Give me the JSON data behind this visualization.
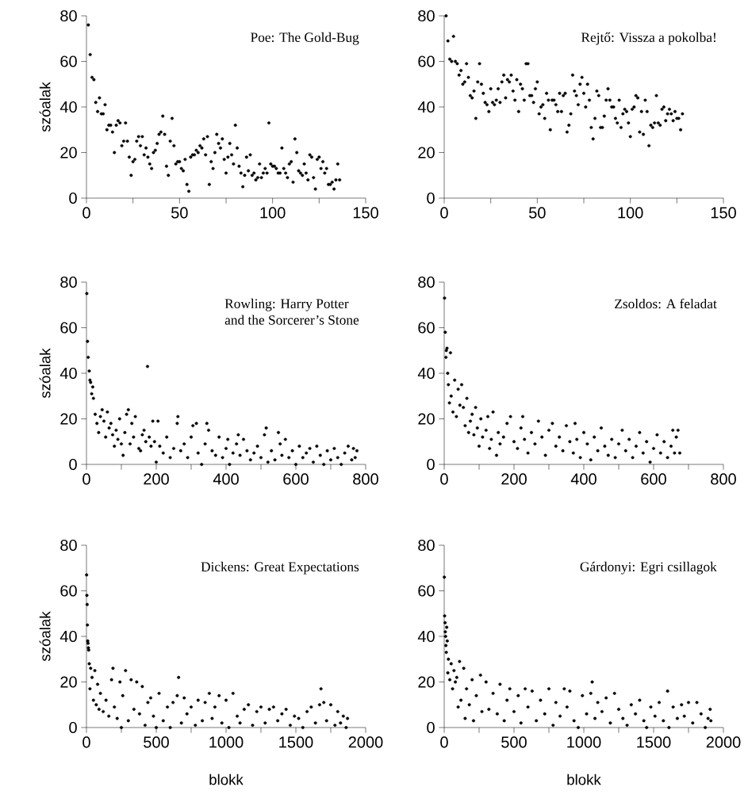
{
  "chart_data": [
    {
      "type": "scatter",
      "title": "Poe: The Gold-Bug",
      "ylabel": "szóalak",
      "color": "#000000",
      "marker": "circle",
      "x": [
        1,
        2,
        3,
        4,
        5,
        6,
        7,
        8,
        9,
        10,
        11,
        12,
        13,
        14,
        15,
        16,
        17,
        18,
        19,
        20,
        21,
        22,
        23,
        24,
        25,
        26,
        27,
        28,
        29,
        30,
        31,
        32,
        33,
        34,
        35,
        36,
        37,
        38,
        39,
        40,
        41,
        42,
        43,
        44,
        45,
        46,
        47,
        48,
        49,
        50,
        51,
        52,
        53,
        54,
        55,
        56,
        57,
        58,
        59,
        60,
        61,
        62,
        63,
        64,
        65,
        66,
        67,
        68,
        69,
        70,
        71,
        72,
        73,
        74,
        75,
        76,
        77,
        78,
        79,
        80,
        81,
        82,
        83,
        84,
        85,
        86,
        87,
        88,
        89,
        90,
        91,
        92,
        93,
        94,
        95,
        96,
        97,
        98,
        99,
        100,
        101,
        102,
        103,
        104,
        105,
        106,
        107,
        108,
        109,
        110,
        111,
        112,
        113,
        114,
        115,
        116,
        117,
        118,
        119,
        120,
        121,
        122,
        123,
        124,
        125,
        126,
        127,
        128,
        129,
        130,
        131,
        132,
        133,
        134,
        135,
        136
      ],
      "values": [
        76,
        63,
        53,
        52,
        42,
        38,
        44,
        37,
        37,
        41,
        30,
        32,
        32,
        29,
        20,
        32,
        34,
        33,
        23,
        25,
        33,
        25,
        18,
        10,
        16,
        17,
        25,
        27,
        23,
        27,
        19,
        22,
        18,
        15,
        13,
        20,
        21,
        24,
        28,
        29,
        36,
        28,
        14,
        10,
        25,
        35,
        23,
        15,
        16,
        16,
        13,
        12,
        17,
        6,
        3,
        18,
        19,
        19,
        21,
        20,
        23,
        22,
        26,
        19,
        27,
        6,
        16,
        13,
        20,
        28,
        24,
        22,
        26,
        17,
        11,
        18,
        24,
        19,
        15,
        32,
        22,
        14,
        11,
        5,
        10,
        18,
        12,
        19,
        10,
        11,
        8,
        9,
        15,
        9,
        11,
        13,
        11,
        33,
        15,
        14,
        14,
        13,
        11,
        11,
        22,
        13,
        11,
        9,
        15,
        16,
        7,
        26,
        20,
        12,
        11,
        10,
        15,
        11,
        8,
        19,
        18,
        9,
        4,
        17,
        18,
        13,
        16,
        11,
        13,
        6,
        6,
        7,
        4,
        8,
        15,
        8
      ],
      "xlim": [
        0,
        150
      ],
      "ylim": [
        0,
        80
      ],
      "xticks": [
        0,
        {
          "value": 25,
          "label": null
        },
        50,
        {
          "value": 75,
          "label": null
        },
        100,
        {
          "value": 125,
          "label": null
        },
        150
      ],
      "yticks": [
        0,
        20,
        40,
        60,
        80
      ]
    },
    {
      "type": "scatter",
      "title": "Rejtő: Vissza a pokolba!",
      "color": "#000000",
      "marker": "circle",
      "x": [
        1,
        2,
        3,
        4,
        5,
        6,
        7,
        8,
        9,
        10,
        11,
        12,
        13,
        14,
        15,
        16,
        17,
        18,
        19,
        20,
        21,
        22,
        23,
        24,
        25,
        26,
        27,
        28,
        29,
        30,
        31,
        32,
        33,
        34,
        35,
        36,
        37,
        38,
        39,
        40,
        41,
        42,
        43,
        44,
        45,
        46,
        47,
        48,
        49,
        50,
        51,
        52,
        53,
        54,
        55,
        56,
        57,
        58,
        59,
        60,
        61,
        62,
        63,
        64,
        65,
        66,
        67,
        68,
        69,
        70,
        71,
        72,
        73,
        74,
        75,
        76,
        77,
        78,
        79,
        80,
        81,
        82,
        83,
        84,
        85,
        86,
        87,
        88,
        89,
        90,
        91,
        92,
        93,
        94,
        95,
        96,
        97,
        98,
        99,
        100,
        101,
        102,
        103,
        104,
        105,
        106,
        107,
        108,
        109,
        110,
        111,
        112,
        113,
        114,
        115,
        116,
        117,
        118,
        119,
        120,
        121,
        122,
        123,
        124,
        125,
        126,
        127,
        128
      ],
      "values": [
        80,
        69,
        61,
        60,
        71,
        60,
        59,
        54,
        56,
        50,
        51,
        59,
        53,
        45,
        44,
        47,
        35,
        51,
        59,
        50,
        46,
        42,
        41,
        38,
        48,
        42,
        41,
        43,
        48,
        42,
        51,
        54,
        44,
        52,
        51,
        54,
        47,
        43,
        52,
        38,
        50,
        48,
        43,
        59,
        59,
        45,
        45,
        42,
        48,
        51,
        37,
        40,
        41,
        35,
        46,
        43,
        30,
        43,
        43,
        41,
        38,
        46,
        38,
        45,
        46,
        29,
        32,
        37,
        54,
        47,
        45,
        41,
        50,
        53,
        46,
        40,
        50,
        43,
        31,
        26,
        35,
        47,
        45,
        31,
        31,
        36,
        43,
        48,
        43,
        40,
        40,
        35,
        33,
        43,
        31,
        37,
        39,
        38,
        33,
        27,
        39,
        40,
        45,
        44,
        29,
        38,
        28,
        43,
        38,
        23,
        32,
        31,
        33,
        45,
        33,
        32,
        39,
        40,
        34,
        37,
        39,
        37,
        34,
        38,
        35,
        35,
        30,
        37
      ],
      "xlim": [
        0,
        150
      ],
      "ylim": [
        0,
        80
      ],
      "xticks": [
        0,
        {
          "value": 25,
          "label": null
        },
        50,
        {
          "value": 75,
          "label": null
        },
        100,
        {
          "value": 125,
          "label": null
        },
        150
      ],
      "yticks": [
        0,
        20,
        40,
        60,
        80
      ]
    },
    {
      "type": "scatter",
      "title": "Rowling: Harry Potter",
      "subtitle": "and the Sorcerer’s Stone",
      "ylabel": "szóalak",
      "color": "#000000",
      "marker": "circle",
      "x": [
        1,
        3,
        5,
        8,
        10,
        12,
        15,
        18,
        20,
        25,
        30,
        35,
        40,
        45,
        50,
        55,
        60,
        65,
        70,
        75,
        80,
        85,
        90,
        95,
        100,
        105,
        110,
        115,
        120,
        125,
        130,
        135,
        140,
        150,
        155,
        160,
        165,
        170,
        175,
        180,
        185,
        190,
        195,
        200,
        205,
        210,
        220,
        230,
        240,
        250,
        260,
        262,
        270,
        280,
        290,
        300,
        305,
        315,
        320,
        330,
        340,
        345,
        350,
        360,
        370,
        380,
        390,
        400,
        405,
        410,
        420,
        430,
        435,
        440,
        450,
        460,
        470,
        480,
        490,
        500,
        510,
        515,
        520,
        530,
        540,
        550,
        555,
        560,
        570,
        580,
        590,
        600,
        610,
        620,
        630,
        640,
        650,
        660,
        670,
        680,
        690,
        700,
        710,
        720,
        730,
        740,
        750,
        760,
        765,
        770,
        775
      ],
      "values": [
        75,
        54,
        47,
        41,
        37,
        36,
        31,
        34,
        29,
        22,
        18,
        14,
        21,
        24,
        19,
        12,
        23,
        16,
        18,
        13,
        8,
        15,
        11,
        20,
        9,
        4,
        14,
        22,
        24,
        9,
        18,
        12,
        21,
        7,
        6,
        13,
        15,
        10,
        43,
        12,
        8,
        19,
        10,
        1,
        19,
        8,
        5,
        12,
        3,
        7,
        18,
        21,
        6,
        9,
        3,
        12,
        17,
        18,
        5,
        0,
        9,
        18,
        15,
        6,
        4,
        12,
        3,
        7,
        11,
        0,
        5,
        9,
        13,
        4,
        11,
        6,
        2,
        5,
        8,
        3,
        13,
        16,
        1,
        6,
        2,
        14,
        9,
        4,
        11,
        3,
        6,
        0,
        8,
        3,
        5,
        7,
        1,
        8,
        4,
        0,
        6,
        2,
        7,
        3,
        0,
        5,
        8,
        2,
        7,
        3,
        6
      ],
      "xlim": [
        0,
        800
      ],
      "ylim": [
        0,
        80
      ],
      "xticks": [
        0,
        {
          "value": 100,
          "label": null
        },
        200,
        {
          "value": 300,
          "label": null
        },
        400,
        {
          "value": 500,
          "label": null
        },
        600,
        {
          "value": 700,
          "label": null
        },
        800
      ],
      "yticks": [
        0,
        20,
        40,
        60,
        80
      ]
    },
    {
      "type": "scatter",
      "title": "Zsoldos: A feladat",
      "color": "#000000",
      "marker": "circle",
      "x": [
        1,
        3,
        5,
        6,
        8,
        10,
        12,
        15,
        18,
        20,
        25,
        30,
        35,
        40,
        45,
        50,
        55,
        60,
        65,
        70,
        75,
        80,
        85,
        90,
        95,
        100,
        105,
        110,
        120,
        125,
        130,
        135,
        140,
        150,
        155,
        160,
        170,
        180,
        190,
        200,
        210,
        220,
        225,
        230,
        240,
        250,
        260,
        270,
        280,
        290,
        300,
        310,
        320,
        330,
        340,
        350,
        360,
        370,
        375,
        380,
        390,
        400,
        410,
        420,
        430,
        440,
        450,
        460,
        470,
        480,
        490,
        500,
        510,
        520,
        530,
        540,
        550,
        560,
        570,
        580,
        590,
        600,
        610,
        620,
        630,
        640,
        650,
        655,
        660,
        665,
        670,
        675
      ],
      "values": [
        73,
        58,
        47,
        50,
        51,
        40,
        35,
        27,
        49,
        30,
        23,
        37,
        21,
        33,
        26,
        35,
        25,
        17,
        29,
        14,
        19,
        22,
        13,
        25,
        16,
        8,
        20,
        12,
        15,
        21,
        7,
        11,
        23,
        4,
        14,
        9,
        12,
        18,
        21,
        10,
        7,
        16,
        21,
        11,
        5,
        14,
        9,
        19,
        12,
        4,
        15,
        18,
        8,
        12,
        6,
        17,
        10,
        5,
        18,
        11,
        3,
        14,
        9,
        2,
        12,
        6,
        16,
        8,
        4,
        11,
        3,
        9,
        15,
        6,
        11,
        3,
        8,
        14,
        5,
        10,
        1,
        7,
        13,
        5,
        10,
        3,
        8,
        15,
        5,
        12,
        15,
        5
      ],
      "xlim": [
        0,
        800
      ],
      "ylim": [
        0,
        80
      ],
      "xticks": [
        0,
        {
          "value": 100,
          "label": null
        },
        200,
        {
          "value": 300,
          "label": null
        },
        400,
        {
          "value": 500,
          "label": null
        },
        600,
        {
          "value": 700,
          "label": null
        },
        800
      ],
      "yticks": [
        0,
        20,
        40,
        60,
        80
      ]
    },
    {
      "type": "scatter",
      "title": "Dickens: Great Expectations",
      "ylabel": "szóalak",
      "xlabel": "blokk",
      "color": "#000000",
      "marker": "circle",
      "x": [
        1,
        3,
        5,
        7,
        9,
        11,
        14,
        16,
        20,
        25,
        30,
        40,
        50,
        60,
        70,
        80,
        90,
        100,
        120,
        140,
        160,
        180,
        190,
        200,
        220,
        240,
        250,
        260,
        280,
        300,
        320,
        340,
        360,
        380,
        400,
        420,
        440,
        460,
        480,
        500,
        520,
        550,
        580,
        600,
        620,
        650,
        660,
        680,
        700,
        720,
        750,
        780,
        800,
        830,
        850,
        880,
        900,
        920,
        950,
        970,
        1000,
        1020,
        1050,
        1080,
        1100,
        1130,
        1160,
        1190,
        1220,
        1250,
        1280,
        1310,
        1340,
        1370,
        1400,
        1430,
        1460,
        1490,
        1520,
        1550,
        1580,
        1610,
        1640,
        1670,
        1680,
        1700,
        1720,
        1750,
        1780,
        1800,
        1820,
        1840,
        1860,
        1870
      ],
      "values": [
        67,
        58,
        54,
        45,
        38,
        37,
        35,
        34,
        28,
        17,
        26,
        22,
        12,
        25,
        10,
        19,
        8,
        15,
        7,
        12,
        5,
        21,
        26,
        9,
        4,
        20,
        0,
        14,
        25,
        3,
        21,
        8,
        20,
        6,
        18,
        1,
        11,
        13,
        5,
        0,
        15,
        3,
        9,
        0,
        11,
        14,
        22,
        2,
        13,
        6,
        9,
        1,
        12,
        3,
        11,
        15,
        4,
        9,
        14,
        2,
        12,
        0,
        15,
        5,
        2,
        8,
        10,
        1,
        7,
        9,
        2,
        8,
        9,
        3,
        6,
        8,
        1,
        5,
        4,
        0,
        7,
        9,
        2,
        10,
        17,
        11,
        3,
        10,
        1,
        7,
        2,
        5,
        0,
        4
      ],
      "xlim": [
        0,
        2000
      ],
      "ylim": [
        0,
        80
      ],
      "xticks": [
        0,
        {
          "value": 250,
          "label": null
        },
        500,
        {
          "value": 750,
          "label": null
        },
        1000,
        {
          "value": 1250,
          "label": null
        },
        1500,
        {
          "value": 1750,
          "label": null
        },
        2000
      ],
      "yticks": [
        0,
        20,
        40,
        60,
        80
      ]
    },
    {
      "type": "scatter",
      "title": "Gárdonyi: Egri csillagok",
      "xlabel": "blokk",
      "color": "#000000",
      "marker": "circle",
      "x": [
        1,
        3,
        6,
        8,
        10,
        12,
        15,
        18,
        22,
        26,
        30,
        40,
        50,
        60,
        70,
        80,
        90,
        100,
        110,
        120,
        140,
        150,
        160,
        180,
        200,
        210,
        230,
        260,
        270,
        300,
        320,
        350,
        380,
        400,
        430,
        450,
        470,
        500,
        530,
        550,
        580,
        600,
        630,
        660,
        690,
        720,
        750,
        780,
        800,
        830,
        860,
        880,
        900,
        930,
        960,
        990,
        1020,
        1050,
        1060,
        1080,
        1100,
        1130,
        1160,
        1190,
        1220,
        1250,
        1280,
        1310,
        1340,
        1370,
        1400,
        1430,
        1450,
        1480,
        1510,
        1540,
        1570,
        1600,
        1610,
        1640,
        1670,
        1700,
        1720,
        1750,
        1780,
        1810,
        1840,
        1870,
        1890,
        1905,
        1910
      ],
      "values": [
        66,
        49,
        46,
        42,
        40,
        36,
        33,
        44,
        38,
        24,
        30,
        21,
        28,
        17,
        25,
        20,
        22,
        9,
        29,
        12,
        26,
        4,
        17,
        10,
        21,
        3,
        14,
        23,
        7,
        20,
        8,
        15,
        6,
        19,
        3,
        12,
        17,
        7,
        14,
        2,
        17,
        9,
        16,
        3,
        12,
        6,
        17,
        1,
        11,
        5,
        17,
        9,
        16,
        3,
        0,
        14,
        6,
        15,
        20,
        4,
        11,
        7,
        13,
        2,
        15,
        8,
        4,
        1,
        10,
        6,
        12,
        3,
        0,
        9,
        5,
        11,
        3,
        16,
        0,
        9,
        4,
        10,
        5,
        11,
        2,
        11,
        6,
        0,
        4,
        8,
        3
      ],
      "xlim": [
        0,
        2000
      ],
      "ylim": [
        0,
        80
      ],
      "xticks": [
        0,
        {
          "value": 250,
          "label": null
        },
        500,
        {
          "value": 750,
          "label": null
        },
        1000,
        {
          "value": 1250,
          "label": null
        },
        1500,
        {
          "value": 1750,
          "label": null
        },
        2000
      ],
      "yticks": [
        0,
        20,
        40,
        60,
        80
      ]
    }
  ]
}
